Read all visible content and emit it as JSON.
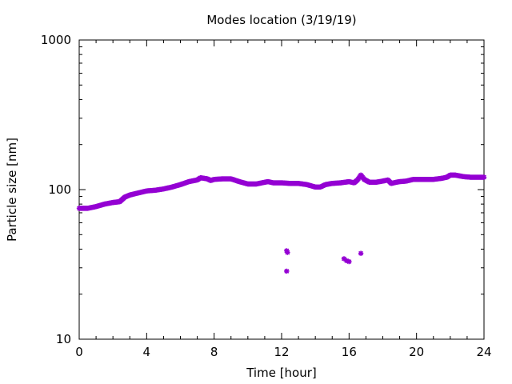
{
  "chart_data": {
    "type": "scatter",
    "title": "Modes location (3/19/19)",
    "xlabel": "Time [hour]",
    "ylabel": "Particle size [nm]",
    "xlim": [
      0,
      24
    ],
    "ylim": [
      10,
      1000
    ],
    "yscale": "log",
    "grid": false,
    "legend": "none",
    "x_ticks": [
      0,
      4,
      8,
      12,
      16,
      20,
      24
    ],
    "x_tick_labels": [
      "0",
      "4",
      "8",
      "12",
      "16",
      "20",
      "24"
    ],
    "y_ticks": [
      10,
      100,
      1000
    ],
    "y_tick_labels": [
      "10",
      "100",
      "1000"
    ],
    "series": [
      {
        "color": "#9400d3",
        "marker": "star",
        "main_mode": [
          [
            0,
            75
          ],
          [
            0.5,
            75
          ],
          [
            1,
            77
          ],
          [
            1.5,
            80
          ],
          [
            2,
            82
          ],
          [
            2.4,
            83
          ],
          [
            2.7,
            89
          ],
          [
            3,
            92
          ],
          [
            3.5,
            95
          ],
          [
            4,
            98
          ],
          [
            4.5,
            99
          ],
          [
            5,
            101
          ],
          [
            5.5,
            104
          ],
          [
            6,
            108
          ],
          [
            6.5,
            113
          ],
          [
            7,
            116
          ],
          [
            7.2,
            120
          ],
          [
            7.6,
            118
          ],
          [
            7.8,
            115
          ],
          [
            8,
            117
          ],
          [
            8.5,
            118
          ],
          [
            9,
            118
          ],
          [
            9.5,
            113
          ],
          [
            10,
            109
          ],
          [
            10.5,
            109
          ],
          [
            11,
            112
          ],
          [
            11.2,
            113
          ],
          [
            11.5,
            111
          ],
          [
            12,
            111
          ],
          [
            12.5,
            110
          ],
          [
            13,
            110
          ],
          [
            13.5,
            108
          ],
          [
            14,
            104
          ],
          [
            14.3,
            104
          ],
          [
            14.6,
            108
          ],
          [
            15,
            110
          ],
          [
            15.5,
            111
          ],
          [
            16,
            113
          ],
          [
            16.3,
            111
          ],
          [
            16.5,
            116
          ],
          [
            16.7,
            125
          ],
          [
            16.9,
            117
          ],
          [
            17.2,
            112
          ],
          [
            17.6,
            112
          ],
          [
            18,
            114
          ],
          [
            18.3,
            116
          ],
          [
            18.5,
            110
          ],
          [
            18.8,
            112
          ],
          [
            19,
            113
          ],
          [
            19.4,
            114
          ],
          [
            19.8,
            117
          ],
          [
            20.2,
            117
          ],
          [
            20.6,
            117
          ],
          [
            21,
            117
          ],
          [
            21.5,
            119
          ],
          [
            21.8,
            121
          ],
          [
            22,
            125
          ],
          [
            22.3,
            125
          ],
          [
            22.8,
            122
          ],
          [
            23.2,
            121
          ],
          [
            23.6,
            121
          ],
          [
            24,
            121
          ]
        ],
        "secondary_mode": [
          [
            12.3,
            39
          ],
          [
            12.35,
            38
          ],
          [
            12.3,
            28.5
          ],
          [
            15.7,
            34.5
          ],
          [
            15.85,
            33.5
          ],
          [
            16,
            33
          ],
          [
            16.7,
            37.5
          ]
        ]
      }
    ]
  }
}
